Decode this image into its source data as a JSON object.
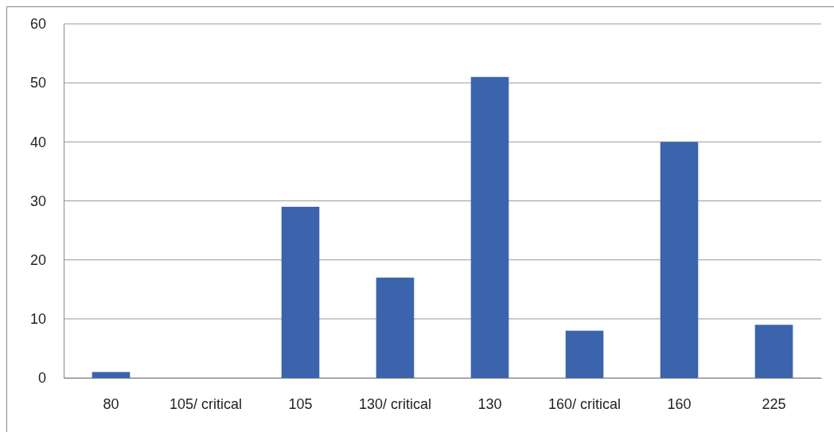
{
  "chart_data": {
    "type": "bar",
    "categories": [
      "80",
      "105/ critical",
      "105",
      "130/ critical",
      "130",
      "160/ critical",
      "160",
      "225"
    ],
    "values": [
      1,
      0,
      29,
      17,
      51,
      8,
      40,
      9
    ],
    "color": "#3b64ad",
    "ylim": [
      0,
      60
    ],
    "yticks": [
      0,
      10,
      20,
      30,
      40,
      50,
      60
    ],
    "grid": "y"
  }
}
